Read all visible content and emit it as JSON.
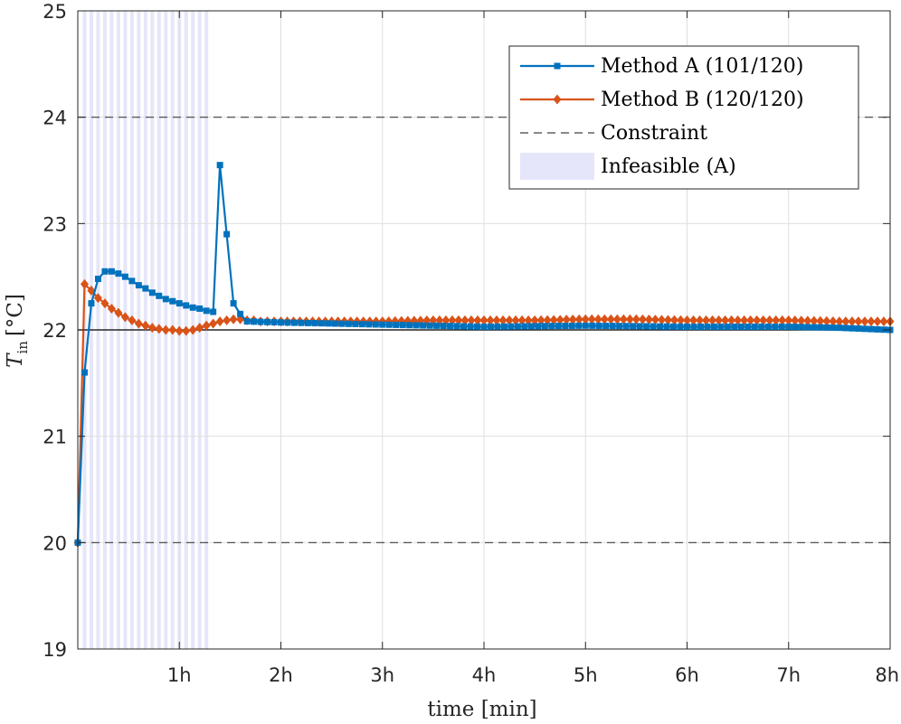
{
  "chart_data": {
    "type": "line",
    "xlabel": "time [min]",
    "ylabel": {
      "main": "T",
      "sub": "in",
      "unit": "[°C]"
    },
    "xlim": [
      0,
      8
    ],
    "ylim": [
      19,
      25
    ],
    "xticks": [
      1,
      2,
      3,
      4,
      5,
      6,
      7,
      8
    ],
    "xtick_labels": [
      "1h",
      "2h",
      "3h",
      "4h",
      "5h",
      "6h",
      "7h",
      "8h"
    ],
    "yticks": [
      19,
      20,
      21,
      22,
      23,
      24,
      25
    ],
    "ytick_labels": [
      "19",
      "20",
      "21",
      "22",
      "23",
      "24",
      "25"
    ],
    "grid": true,
    "legend_position": "top-right",
    "constraint": {
      "name": "Constraint",
      "y": [
        20,
        24
      ],
      "color": "#404040",
      "style": "dashed"
    },
    "reference": {
      "y": 22,
      "color": "#262626"
    },
    "infeasible": {
      "name": "Infeasible (A)",
      "color": "#e6e6fa",
      "x": [
        0.0667,
        0.1333,
        0.2,
        0.2667,
        0.3333,
        0.4,
        0.4667,
        0.5333,
        0.6,
        0.6667,
        0.7333,
        0.8,
        0.8667,
        0.9333,
        1.0,
        1.0667,
        1.1333,
        1.2,
        1.2667
      ]
    },
    "series": [
      {
        "name": "Method A (101/120)",
        "color": "#0072bd",
        "marker": "square",
        "x": [
          0,
          0.0667,
          0.1333,
          0.2,
          0.2667,
          0.3333,
          0.4,
          0.4667,
          0.5333,
          0.6,
          0.6667,
          0.7333,
          0.8,
          0.8667,
          0.9333,
          1.0,
          1.0667,
          1.1333,
          1.2,
          1.2667,
          1.3333,
          1.4,
          1.4667,
          1.5333,
          1.6,
          1.6667,
          2,
          3,
          4,
          5,
          6,
          7,
          7.5,
          8
        ],
        "y": [
          20.0,
          21.6,
          22.25,
          22.48,
          22.55,
          22.55,
          22.53,
          22.5,
          22.46,
          22.42,
          22.39,
          22.35,
          22.32,
          22.29,
          22.27,
          22.25,
          22.23,
          22.21,
          22.2,
          22.18,
          22.17,
          23.55,
          22.9,
          22.25,
          22.15,
          22.08,
          22.07,
          22.05,
          22.03,
          22.04,
          22.03,
          22.03,
          22.02,
          22.0
        ]
      },
      {
        "name": "Method B (120/120)",
        "color": "#d95319",
        "marker": "diamond",
        "x": [
          0,
          0.0667,
          0.1333,
          0.2,
          0.2667,
          0.3333,
          0.4,
          0.4667,
          0.5333,
          0.6,
          0.6667,
          0.7333,
          0.8,
          0.8667,
          0.9333,
          1.0,
          1.0667,
          1.1333,
          1.2,
          1.2667,
          1.3333,
          1.4,
          1.4667,
          1.5333,
          1.6,
          1.6667,
          1.7333,
          1.8,
          2,
          2.5,
          3,
          3.5,
          4,
          4.5,
          5,
          5.5,
          6,
          6.5,
          7,
          7.5,
          8
        ],
        "y": [
          20.0,
          22.43,
          22.37,
          22.3,
          22.25,
          22.2,
          22.16,
          22.12,
          22.09,
          22.06,
          22.04,
          22.02,
          22.01,
          22.0,
          22.0,
          21.99,
          21.99,
          22.0,
          22.02,
          22.04,
          22.06,
          22.08,
          22.09,
          22.1,
          22.1,
          22.09,
          22.09,
          22.08,
          22.08,
          22.08,
          22.08,
          22.09,
          22.09,
          22.09,
          22.1,
          22.1,
          22.09,
          22.09,
          22.09,
          22.08,
          22.08
        ]
      }
    ]
  }
}
